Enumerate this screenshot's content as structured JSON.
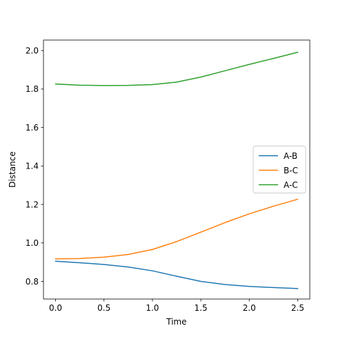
{
  "chart_data": {
    "type": "line",
    "title": "",
    "xlabel": "Time",
    "ylabel": "Distance",
    "xlim": [
      -0.125,
      2.625
    ],
    "ylim": [
      0.7085,
      2.0545
    ],
    "xticks": [
      0.0,
      0.5,
      1.0,
      1.5,
      2.0,
      2.5
    ],
    "xtick_labels": [
      "0.0",
      "0.5",
      "1.0",
      "1.5",
      "2.0",
      "2.5"
    ],
    "yticks": [
      0.8,
      1.0,
      1.2,
      1.4,
      1.6,
      1.8,
      2.0
    ],
    "ytick_labels": [
      "0.8",
      "1.0",
      "1.2",
      "1.4",
      "1.6",
      "1.8",
      "2.0"
    ],
    "grid": false,
    "legend": {
      "position": "center-right"
    },
    "x": [
      0.0,
      0.25,
      0.5,
      0.75,
      1.0,
      1.25,
      1.5,
      1.75,
      2.0,
      2.25,
      2.5
    ],
    "series": [
      {
        "name": "A-B",
        "color": "#1f77b4",
        "values": [
          0.905,
          0.897,
          0.888,
          0.875,
          0.855,
          0.827,
          0.8,
          0.784,
          0.774,
          0.768,
          0.763
        ]
      },
      {
        "name": "B-C",
        "color": "#ff7f0e",
        "values": [
          0.917,
          0.919,
          0.926,
          0.94,
          0.966,
          1.007,
          1.056,
          1.106,
          1.151,
          1.191,
          1.227
        ]
      },
      {
        "name": "A-C",
        "color": "#2ca02c",
        "values": [
          1.826,
          1.82,
          1.818,
          1.819,
          1.823,
          1.836,
          1.862,
          1.895,
          1.928,
          1.959,
          1.991
        ]
      }
    ]
  }
}
